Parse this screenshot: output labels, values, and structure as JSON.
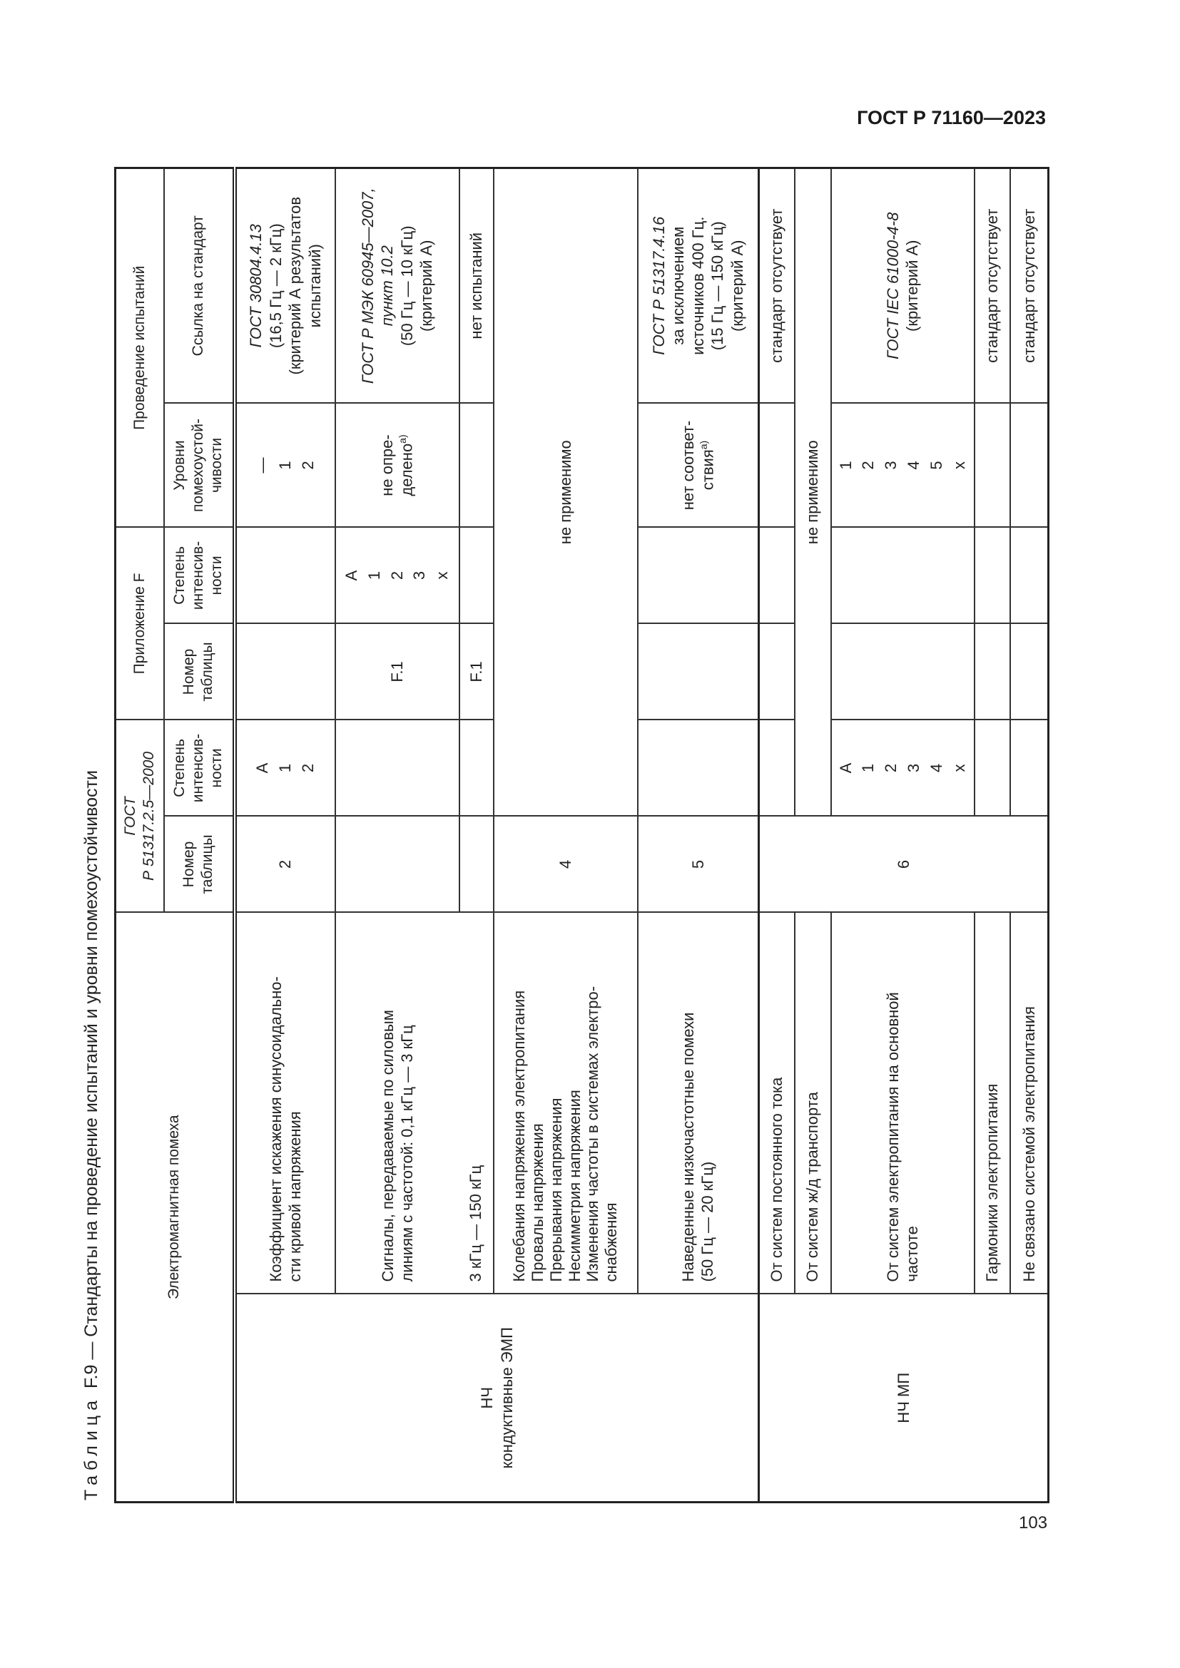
{
  "running_header": "ГОСТ Р 71160—2023",
  "page_number": "103",
  "caption": {
    "label": "Таблица",
    "text": "F.9 — Стандарты на проведение испытаний и уровни помехоустойчивости"
  },
  "table": {
    "header": {
      "disturbance": "Электромагнитная помеха",
      "gost_group": "ГОСТ\nР 51317.2.5—2000",
      "annex_group": "Приложение F",
      "testing_group": "Проведение испытаний",
      "gost_table_no": "Номер\nтаблицы",
      "gost_severity": "Степень\nинтенсив-\nности",
      "annex_table_no": "Номер\nтаблицы",
      "annex_severity": "Степень\nинтенсив-\nности",
      "immunity_levels": "Уровни\nпомехоустой-\nчивости",
      "standard_ref": "Ссылка на стандарт"
    },
    "categories": [
      "НЧ\nкондуктивные ЭМП",
      "НЧ МП"
    ],
    "rows": [
      {
        "phenomenon": "Коэффициент искажения синусоидально-\nсти кривой напряжения",
        "gost_table": "2",
        "gost_severity": "A\n1\n2",
        "annex_table": "",
        "annex_severity": "",
        "levels": "—\n1\n2",
        "ref_italic": "ГОСТ 30804.4.13",
        "ref": "(16,5 Гц — 2 кГц)\n(критерий А результатов\nиспытаний)"
      },
      {
        "phenomenon": "Сигналы, передаваемые по силовым\nлиниям с частотой: 0,1 кГц — 3 кГц",
        "gost_table": "",
        "gost_severity": "",
        "annex_table": "F.1",
        "annex_severity": "A\n1\n2\n3\nx",
        "levels": "не опре-\nделено",
        "levels_note": "а)",
        "ref_italic": "ГОСТ Р МЭК 60945—2007,\nпункт 10.2",
        "ref": "(50 Гц — 10 кГц)\n(критерий А)"
      },
      {
        "phenomenon": "3 кГц — 150 кГц",
        "gost_table": "",
        "gost_severity": "",
        "annex_table": "F.1",
        "annex_severity": "",
        "levels": "",
        "ref": "нет испытаний"
      },
      {
        "phenomenon": "Колебания напряжения электропитания\nПровалы напряжения\nПрерывания напряжения\nНесимметрия напряжения\nИзменения частоты в системах электро-\nснабжения",
        "gost_table": "4",
        "merged": "не применимо"
      },
      {
        "phenomenon": "Наведенные низкочастотные помехи\n(50 Гц — 20 кГц)",
        "gost_table": "5",
        "gost_severity": "",
        "annex_table": "",
        "annex_severity": "",
        "levels": "нет соответ-\nствия",
        "levels_note": "а)",
        "ref_italic": "ГОСТ Р 51317.4.16",
        "ref": "за исключением\nисточников 400 Гц.\n(15 Гц — 150 кГц)\n(критерий А)"
      },
      {
        "phenomenon": "От систем постоянного тока",
        "gost_table": "6",
        "ref": "стандарт отсутствует"
      },
      {
        "phenomenon": "От систем ж/д транспорта",
        "merged": "не применимо"
      },
      {
        "phenomenon": "От систем электропитания на основной\nчастоте",
        "gost_severity": "A\n1\n2\n3\n4\nx",
        "levels": "1\n2\n3\n4\n5\nx",
        "ref_italic": "ГОСТ IEC 61000-4-8",
        "ref": "(критерий А)"
      },
      {
        "phenomenon": "Гармоники электропитания",
        "ref": "стандарт отсутствует"
      },
      {
        "phenomenon": "Не связано системой электропитания",
        "ref": "стандарт отсутствует"
      }
    ]
  }
}
